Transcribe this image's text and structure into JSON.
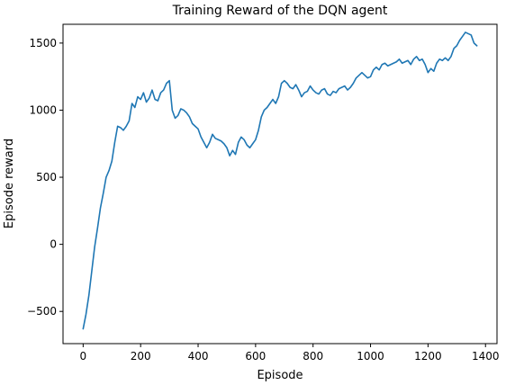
{
  "chart_data": {
    "type": "line",
    "title": "Training Reward of the DQN agent",
    "xlabel": "Episode",
    "ylabel": "Episode reward",
    "xlim": [
      -70,
      1440
    ],
    "ylim": [
      -740,
      1640
    ],
    "xticks": [
      0,
      200,
      400,
      600,
      800,
      1000,
      1200,
      1400
    ],
    "yticks": [
      -500,
      0,
      500,
      1000,
      1500
    ],
    "grid": false,
    "legend": "none",
    "color": "#1f77b4",
    "series": [
      {
        "x": [
          0,
          10,
          20,
          30,
          40,
          50,
          60,
          70,
          80,
          90,
          100,
          110,
          120,
          130,
          140,
          150,
          160,
          170,
          180,
          190,
          200,
          210,
          220,
          230,
          240,
          250,
          260,
          270,
          280,
          290,
          300,
          310,
          320,
          330,
          340,
          350,
          360,
          370,
          380,
          390,
          400,
          410,
          420,
          430,
          440,
          450,
          460,
          470,
          480,
          490,
          500,
          510,
          520,
          530,
          540,
          550,
          560,
          570,
          580,
          590,
          600,
          610,
          620,
          630,
          640,
          650,
          660,
          670,
          680,
          690,
          700,
          710,
          720,
          730,
          740,
          750,
          760,
          770,
          780,
          790,
          800,
          810,
          820,
          830,
          840,
          850,
          860,
          870,
          880,
          890,
          900,
          910,
          920,
          930,
          940,
          950,
          960,
          970,
          980,
          990,
          1000,
          1010,
          1020,
          1030,
          1040,
          1050,
          1060,
          1070,
          1080,
          1090,
          1100,
          1110,
          1120,
          1130,
          1140,
          1150,
          1160,
          1170,
          1180,
          1190,
          1200,
          1210,
          1220,
          1230,
          1240,
          1250,
          1260,
          1270,
          1280,
          1290,
          1300,
          1310,
          1320,
          1330,
          1340,
          1350,
          1360,
          1370
        ],
        "y": [
          -630,
          -520,
          -380,
          -200,
          -20,
          120,
          270,
          380,
          500,
          550,
          620,
          760,
          880,
          870,
          850,
          880,
          920,
          1050,
          1020,
          1100,
          1080,
          1130,
          1060,
          1090,
          1150,
          1080,
          1070,
          1130,
          1150,
          1200,
          1220,
          1000,
          940,
          960,
          1010,
          1000,
          980,
          950,
          900,
          880,
          860,
          800,
          760,
          720,
          760,
          820,
          790,
          780,
          770,
          750,
          720,
          660,
          700,
          670,
          760,
          800,
          780,
          740,
          720,
          750,
          780,
          850,
          950,
          1000,
          1020,
          1050,
          1080,
          1050,
          1100,
          1200,
          1220,
          1200,
          1170,
          1160,
          1190,
          1150,
          1100,
          1130,
          1140,
          1180,
          1150,
          1130,
          1120,
          1150,
          1160,
          1120,
          1110,
          1140,
          1130,
          1160,
          1170,
          1180,
          1150,
          1170,
          1200,
          1240,
          1260,
          1280,
          1260,
          1240,
          1250,
          1300,
          1320,
          1300,
          1340,
          1350,
          1330,
          1340,
          1350,
          1360,
          1380,
          1350,
          1360,
          1370,
          1340,
          1380,
          1400,
          1370,
          1380,
          1340,
          1280,
          1310,
          1290,
          1350,
          1380,
          1370,
          1390,
          1370,
          1400,
          1460,
          1480,
          1520,
          1550,
          1580,
          1570,
          1560,
          1500,
          1480
        ]
      }
    ]
  }
}
